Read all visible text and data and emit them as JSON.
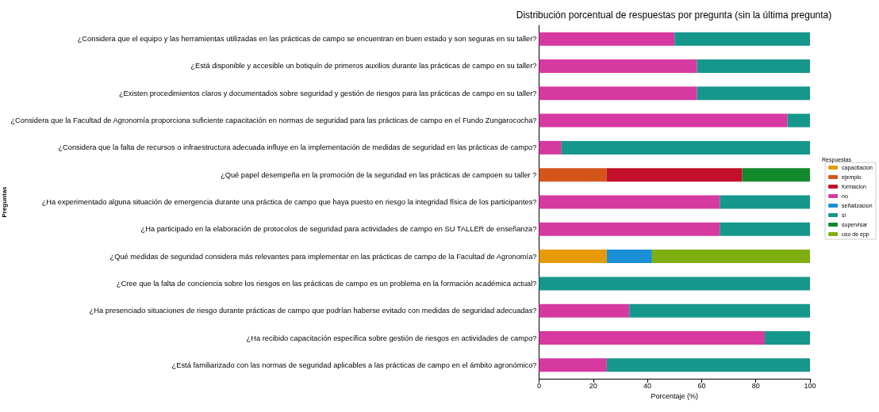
{
  "chart_data": {
    "type": "bar",
    "orientation": "horizontal",
    "stacked": true,
    "title": "Distribución porcentual de respuestas por pregunta (sin la última pregunta)",
    "xlabel": "Porcentaje (%)",
    "ylabel": "Preguntas",
    "legend_title": "Respuestas",
    "legend": "right",
    "grid": false,
    "xlim": [
      0,
      100
    ],
    "xticks": [
      0,
      20,
      40,
      60,
      80,
      100
    ],
    "categories": [
      "¿Considera que el equipo y las herramientas utilizadas en las prácticas de campo se encuentran en buen estado y son seguras en su taller?",
      "¿Está disponible y accesible un botiquín de primeros auxilios durante las prácticas de campo en su taller?",
      "¿Existen procedimientos claros y documentados sobre seguridad y gestión de riesgos para las prácticas de campo en su taller?",
      "¿Considera que la Facultad de Agronomía proporciona suficiente capacitación en normas de seguridad para las prácticas de campo en el Fundo Zungarococha?",
      "¿Considera que la falta de recursos o infraestructura adecuada influye en la implementación de medidas de seguridad en las prácticas de campo?",
      "¿Qué papel desempeña en la promoción de la seguridad en las prácticas de campoen su taller ?",
      "¿Ha experimentado alguna situación de emergencia durante una práctica de campo que haya puesto en riesgo la integridad física de los participantes?",
      "¿Ha participado en la elaboración de protocolos de seguridad para actividades de campo en SU TALLER de enseñanza?",
      "¿Qué medidas de seguridad considera más relevantes para implementar en las prácticas de campo de la Facultad de Agronomía?",
      "¿Cree que la falta de conciencia sobre los riesgos en las prácticas de campo es un problema en la formación académica actual?",
      "¿Ha presenciado situaciones de riesgo durante prácticas de campo que podrían haberse evitado con medidas de seguridad adecuadas?",
      "¿Ha recibido capacitación específica sobre gestión de riesgos en actividades de campo?",
      "¿Está familiarizado con las normas de seguridad aplicables a las prácticas de campo en el ámbito agronómico?"
    ],
    "series": [
      {
        "name": "capacitacion",
        "color": "#e69a0a",
        "values": [
          null,
          null,
          null,
          null,
          null,
          null,
          null,
          null,
          25,
          null,
          null,
          null,
          null
        ]
      },
      {
        "name": "ejemplo",
        "color": "#d4541a",
        "values": [
          null,
          null,
          null,
          null,
          null,
          25,
          null,
          null,
          null,
          null,
          null,
          null,
          null
        ]
      },
      {
        "name": "formacion",
        "color": "#c2102a",
        "values": [
          null,
          null,
          null,
          null,
          null,
          50,
          null,
          null,
          null,
          null,
          null,
          null,
          null
        ]
      },
      {
        "name": "no",
        "color": "#d63aa0",
        "values": [
          50,
          58.3,
          58.3,
          91.7,
          8.3,
          null,
          66.7,
          66.7,
          null,
          null,
          33.3,
          83.3,
          25
        ]
      },
      {
        "name": "señalizacion",
        "color": "#1b8fd6",
        "values": [
          null,
          null,
          null,
          null,
          null,
          null,
          null,
          null,
          16.7,
          null,
          null,
          null,
          null
        ]
      },
      {
        "name": "si",
        "color": "#16978b",
        "values": [
          50,
          41.7,
          41.7,
          8.3,
          91.7,
          null,
          33.3,
          33.3,
          null,
          100,
          66.7,
          16.7,
          75
        ]
      },
      {
        "name": "supervisar",
        "color": "#13892c",
        "values": [
          null,
          null,
          null,
          null,
          null,
          25,
          null,
          null,
          null,
          null,
          null,
          null,
          null
        ]
      },
      {
        "name": "uso de epp",
        "color": "#7fae10",
        "values": [
          null,
          null,
          null,
          null,
          null,
          null,
          null,
          null,
          58.3,
          null,
          null,
          null,
          null
        ]
      }
    ]
  }
}
